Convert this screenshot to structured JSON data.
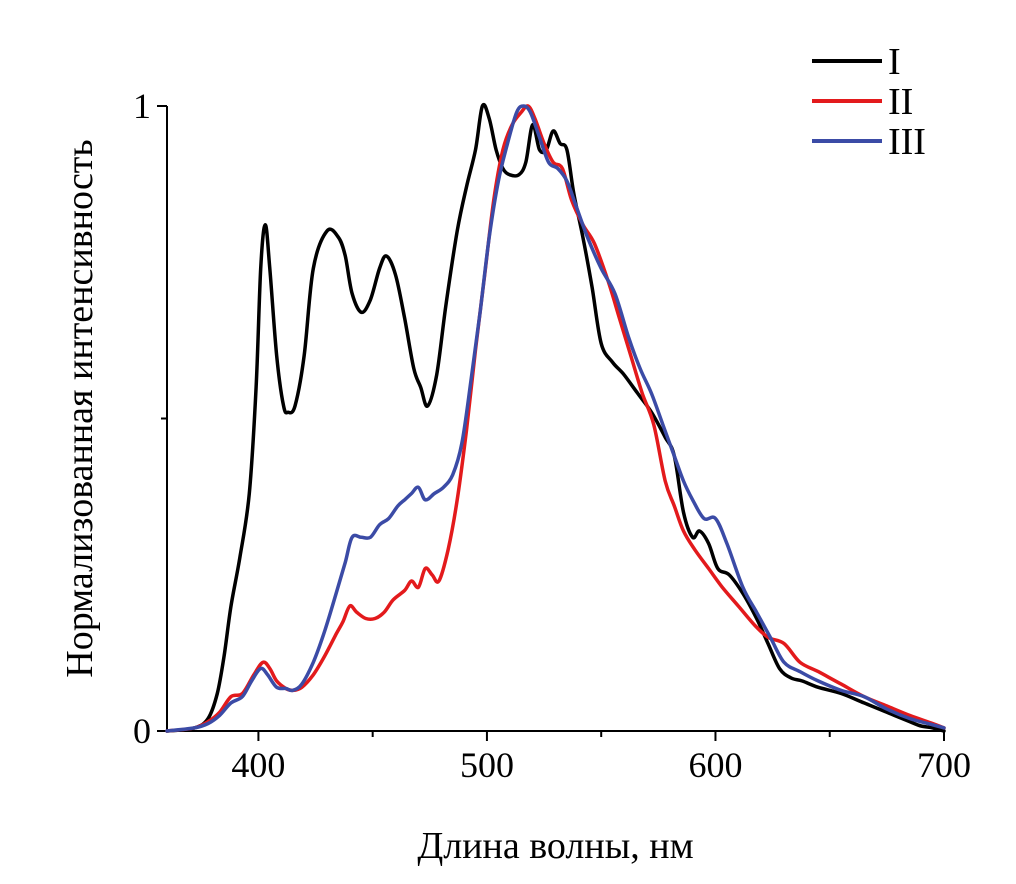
{
  "chart_data": {
    "type": "line",
    "title": "",
    "xlabel": "Длина волны, нм",
    "ylabel": "Нормализованная интенсивность",
    "xlim": [
      360,
      700
    ],
    "ylim": [
      0,
      1
    ],
    "x_ticks": [
      400,
      500,
      600,
      700
    ],
    "y_ticks": [
      0,
      1
    ],
    "y_minor_ticks": [
      0.5
    ],
    "legend_position": "top-right",
    "series": [
      {
        "name": "I",
        "color": "#000000",
        "points": [
          [
            360,
            0
          ],
          [
            372,
            0.005
          ],
          [
            378,
            0.02
          ],
          [
            382,
            0.06
          ],
          [
            385,
            0.12
          ],
          [
            388,
            0.2
          ],
          [
            392,
            0.28
          ],
          [
            396,
            0.38
          ],
          [
            399,
            0.55
          ],
          [
            401,
            0.74
          ],
          [
            403,
            0.81
          ],
          [
            405,
            0.74
          ],
          [
            408,
            0.6
          ],
          [
            411,
            0.52
          ],
          [
            413,
            0.51
          ],
          [
            416,
            0.52
          ],
          [
            420,
            0.6
          ],
          [
            424,
            0.74
          ],
          [
            430,
            0.8
          ],
          [
            435,
            0.79
          ],
          [
            438,
            0.76
          ],
          [
            441,
            0.7
          ],
          [
            445,
            0.67
          ],
          [
            449,
            0.69
          ],
          [
            453,
            0.74
          ],
          [
            456,
            0.76
          ],
          [
            460,
            0.73
          ],
          [
            464,
            0.66
          ],
          [
            468,
            0.58
          ],
          [
            471,
            0.55
          ],
          [
            474,
            0.52
          ],
          [
            478,
            0.57
          ],
          [
            482,
            0.68
          ],
          [
            487,
            0.8
          ],
          [
            491,
            0.87
          ],
          [
            495,
            0.93
          ],
          [
            498,
            1.0
          ],
          [
            501,
            0.98
          ],
          [
            504,
            0.93
          ],
          [
            507,
            0.9
          ],
          [
            510,
            0.89
          ],
          [
            514,
            0.89
          ],
          [
            517,
            0.91
          ],
          [
            520,
            0.97
          ],
          [
            523,
            0.93
          ],
          [
            526,
            0.93
          ],
          [
            529,
            0.96
          ],
          [
            532,
            0.94
          ],
          [
            535,
            0.93
          ],
          [
            538,
            0.86
          ],
          [
            542,
            0.79
          ],
          [
            546,
            0.71
          ],
          [
            550,
            0.62
          ],
          [
            555,
            0.59
          ],
          [
            560,
            0.57
          ],
          [
            566,
            0.54
          ],
          [
            572,
            0.51
          ],
          [
            578,
            0.47
          ],
          [
            582,
            0.44
          ],
          [
            586,
            0.35
          ],
          [
            590,
            0.31
          ],
          [
            593,
            0.32
          ],
          [
            597,
            0.3
          ],
          [
            601,
            0.26
          ],
          [
            606,
            0.25
          ],
          [
            612,
            0.22
          ],
          [
            618,
            0.18
          ],
          [
            623,
            0.14
          ],
          [
            628,
            0.1
          ],
          [
            633,
            0.085
          ],
          [
            638,
            0.08
          ],
          [
            645,
            0.07
          ],
          [
            655,
            0.06
          ],
          [
            665,
            0.045
          ],
          [
            675,
            0.03
          ],
          [
            685,
            0.015
          ],
          [
            690,
            0.008
          ],
          [
            695,
            0.005
          ],
          [
            700,
            0
          ]
        ]
      },
      {
        "name": "II",
        "color": "#e31a1c",
        "points": [
          [
            360,
            0
          ],
          [
            372,
            0.005
          ],
          [
            378,
            0.015
          ],
          [
            383,
            0.03
          ],
          [
            388,
            0.055
          ],
          [
            393,
            0.06
          ],
          [
            398,
            0.09
          ],
          [
            402,
            0.11
          ],
          [
            405,
            0.1
          ],
          [
            408,
            0.08
          ],
          [
            412,
            0.068
          ],
          [
            415,
            0.065
          ],
          [
            419,
            0.07
          ],
          [
            424,
            0.09
          ],
          [
            429,
            0.12
          ],
          [
            434,
            0.155
          ],
          [
            437,
            0.175
          ],
          [
            440,
            0.2
          ],
          [
            443,
            0.19
          ],
          [
            447,
            0.18
          ],
          [
            451,
            0.18
          ],
          [
            455,
            0.19
          ],
          [
            459,
            0.21
          ],
          [
            464,
            0.225
          ],
          [
            467,
            0.24
          ],
          [
            470,
            0.23
          ],
          [
            473,
            0.26
          ],
          [
            476,
            0.25
          ],
          [
            479,
            0.24
          ],
          [
            483,
            0.29
          ],
          [
            487,
            0.37
          ],
          [
            491,
            0.48
          ],
          [
            495,
            0.61
          ],
          [
            499,
            0.73
          ],
          [
            503,
            0.85
          ],
          [
            507,
            0.93
          ],
          [
            511,
            0.97
          ],
          [
            515,
            0.99
          ],
          [
            518,
            1.0
          ],
          [
            521,
            0.98
          ],
          [
            525,
            0.94
          ],
          [
            529,
            0.91
          ],
          [
            533,
            0.9
          ],
          [
            537,
            0.85
          ],
          [
            542,
            0.81
          ],
          [
            547,
            0.78
          ],
          [
            553,
            0.72
          ],
          [
            558,
            0.66
          ],
          [
            563,
            0.6
          ],
          [
            568,
            0.54
          ],
          [
            573,
            0.49
          ],
          [
            578,
            0.4
          ],
          [
            582,
            0.36
          ],
          [
            586,
            0.32
          ],
          [
            591,
            0.29
          ],
          [
            597,
            0.26
          ],
          [
            603,
            0.23
          ],
          [
            610,
            0.2
          ],
          [
            617,
            0.17
          ],
          [
            623,
            0.15
          ],
          [
            630,
            0.14
          ],
          [
            637,
            0.11
          ],
          [
            645,
            0.095
          ],
          [
            655,
            0.075
          ],
          [
            665,
            0.055
          ],
          [
            675,
            0.04
          ],
          [
            685,
            0.025
          ],
          [
            695,
            0.012
          ],
          [
            700,
            0.005
          ]
        ]
      },
      {
        "name": "III",
        "color": "#3b4ba6",
        "points": [
          [
            360,
            0
          ],
          [
            372,
            0.005
          ],
          [
            378,
            0.012
          ],
          [
            383,
            0.025
          ],
          [
            388,
            0.045
          ],
          [
            393,
            0.055
          ],
          [
            397,
            0.08
          ],
          [
            401,
            0.1
          ],
          [
            404,
            0.09
          ],
          [
            408,
            0.07
          ],
          [
            412,
            0.068
          ],
          [
            415,
            0.065
          ],
          [
            419,
            0.075
          ],
          [
            424,
            0.11
          ],
          [
            429,
            0.16
          ],
          [
            434,
            0.22
          ],
          [
            438,
            0.27
          ],
          [
            441,
            0.31
          ],
          [
            445,
            0.31
          ],
          [
            449,
            0.31
          ],
          [
            453,
            0.33
          ],
          [
            457,
            0.34
          ],
          [
            461,
            0.36
          ],
          [
            464,
            0.37
          ],
          [
            467,
            0.38
          ],
          [
            470,
            0.39
          ],
          [
            473,
            0.37
          ],
          [
            477,
            0.38
          ],
          [
            481,
            0.39
          ],
          [
            485,
            0.41
          ],
          [
            489,
            0.46
          ],
          [
            493,
            0.56
          ],
          [
            497,
            0.67
          ],
          [
            501,
            0.79
          ],
          [
            505,
            0.88
          ],
          [
            509,
            0.94
          ],
          [
            513,
            0.99
          ],
          [
            516,
            1.0
          ],
          [
            519,
            0.99
          ],
          [
            523,
            0.95
          ],
          [
            527,
            0.91
          ],
          [
            531,
            0.9
          ],
          [
            535,
            0.88
          ],
          [
            539,
            0.84
          ],
          [
            544,
            0.79
          ],
          [
            550,
            0.74
          ],
          [
            556,
            0.7
          ],
          [
            562,
            0.63
          ],
          [
            567,
            0.58
          ],
          [
            572,
            0.54
          ],
          [
            577,
            0.49
          ],
          [
            582,
            0.44
          ],
          [
            586,
            0.4
          ],
          [
            590,
            0.37
          ],
          [
            595,
            0.34
          ],
          [
            600,
            0.34
          ],
          [
            605,
            0.3
          ],
          [
            612,
            0.23
          ],
          [
            618,
            0.19
          ],
          [
            624,
            0.15
          ],
          [
            630,
            0.11
          ],
          [
            637,
            0.095
          ],
          [
            645,
            0.08
          ],
          [
            655,
            0.065
          ],
          [
            665,
            0.055
          ],
          [
            675,
            0.035
          ],
          [
            685,
            0.02
          ],
          [
            695,
            0.01
          ],
          [
            700,
            0.005
          ]
        ]
      }
    ]
  }
}
